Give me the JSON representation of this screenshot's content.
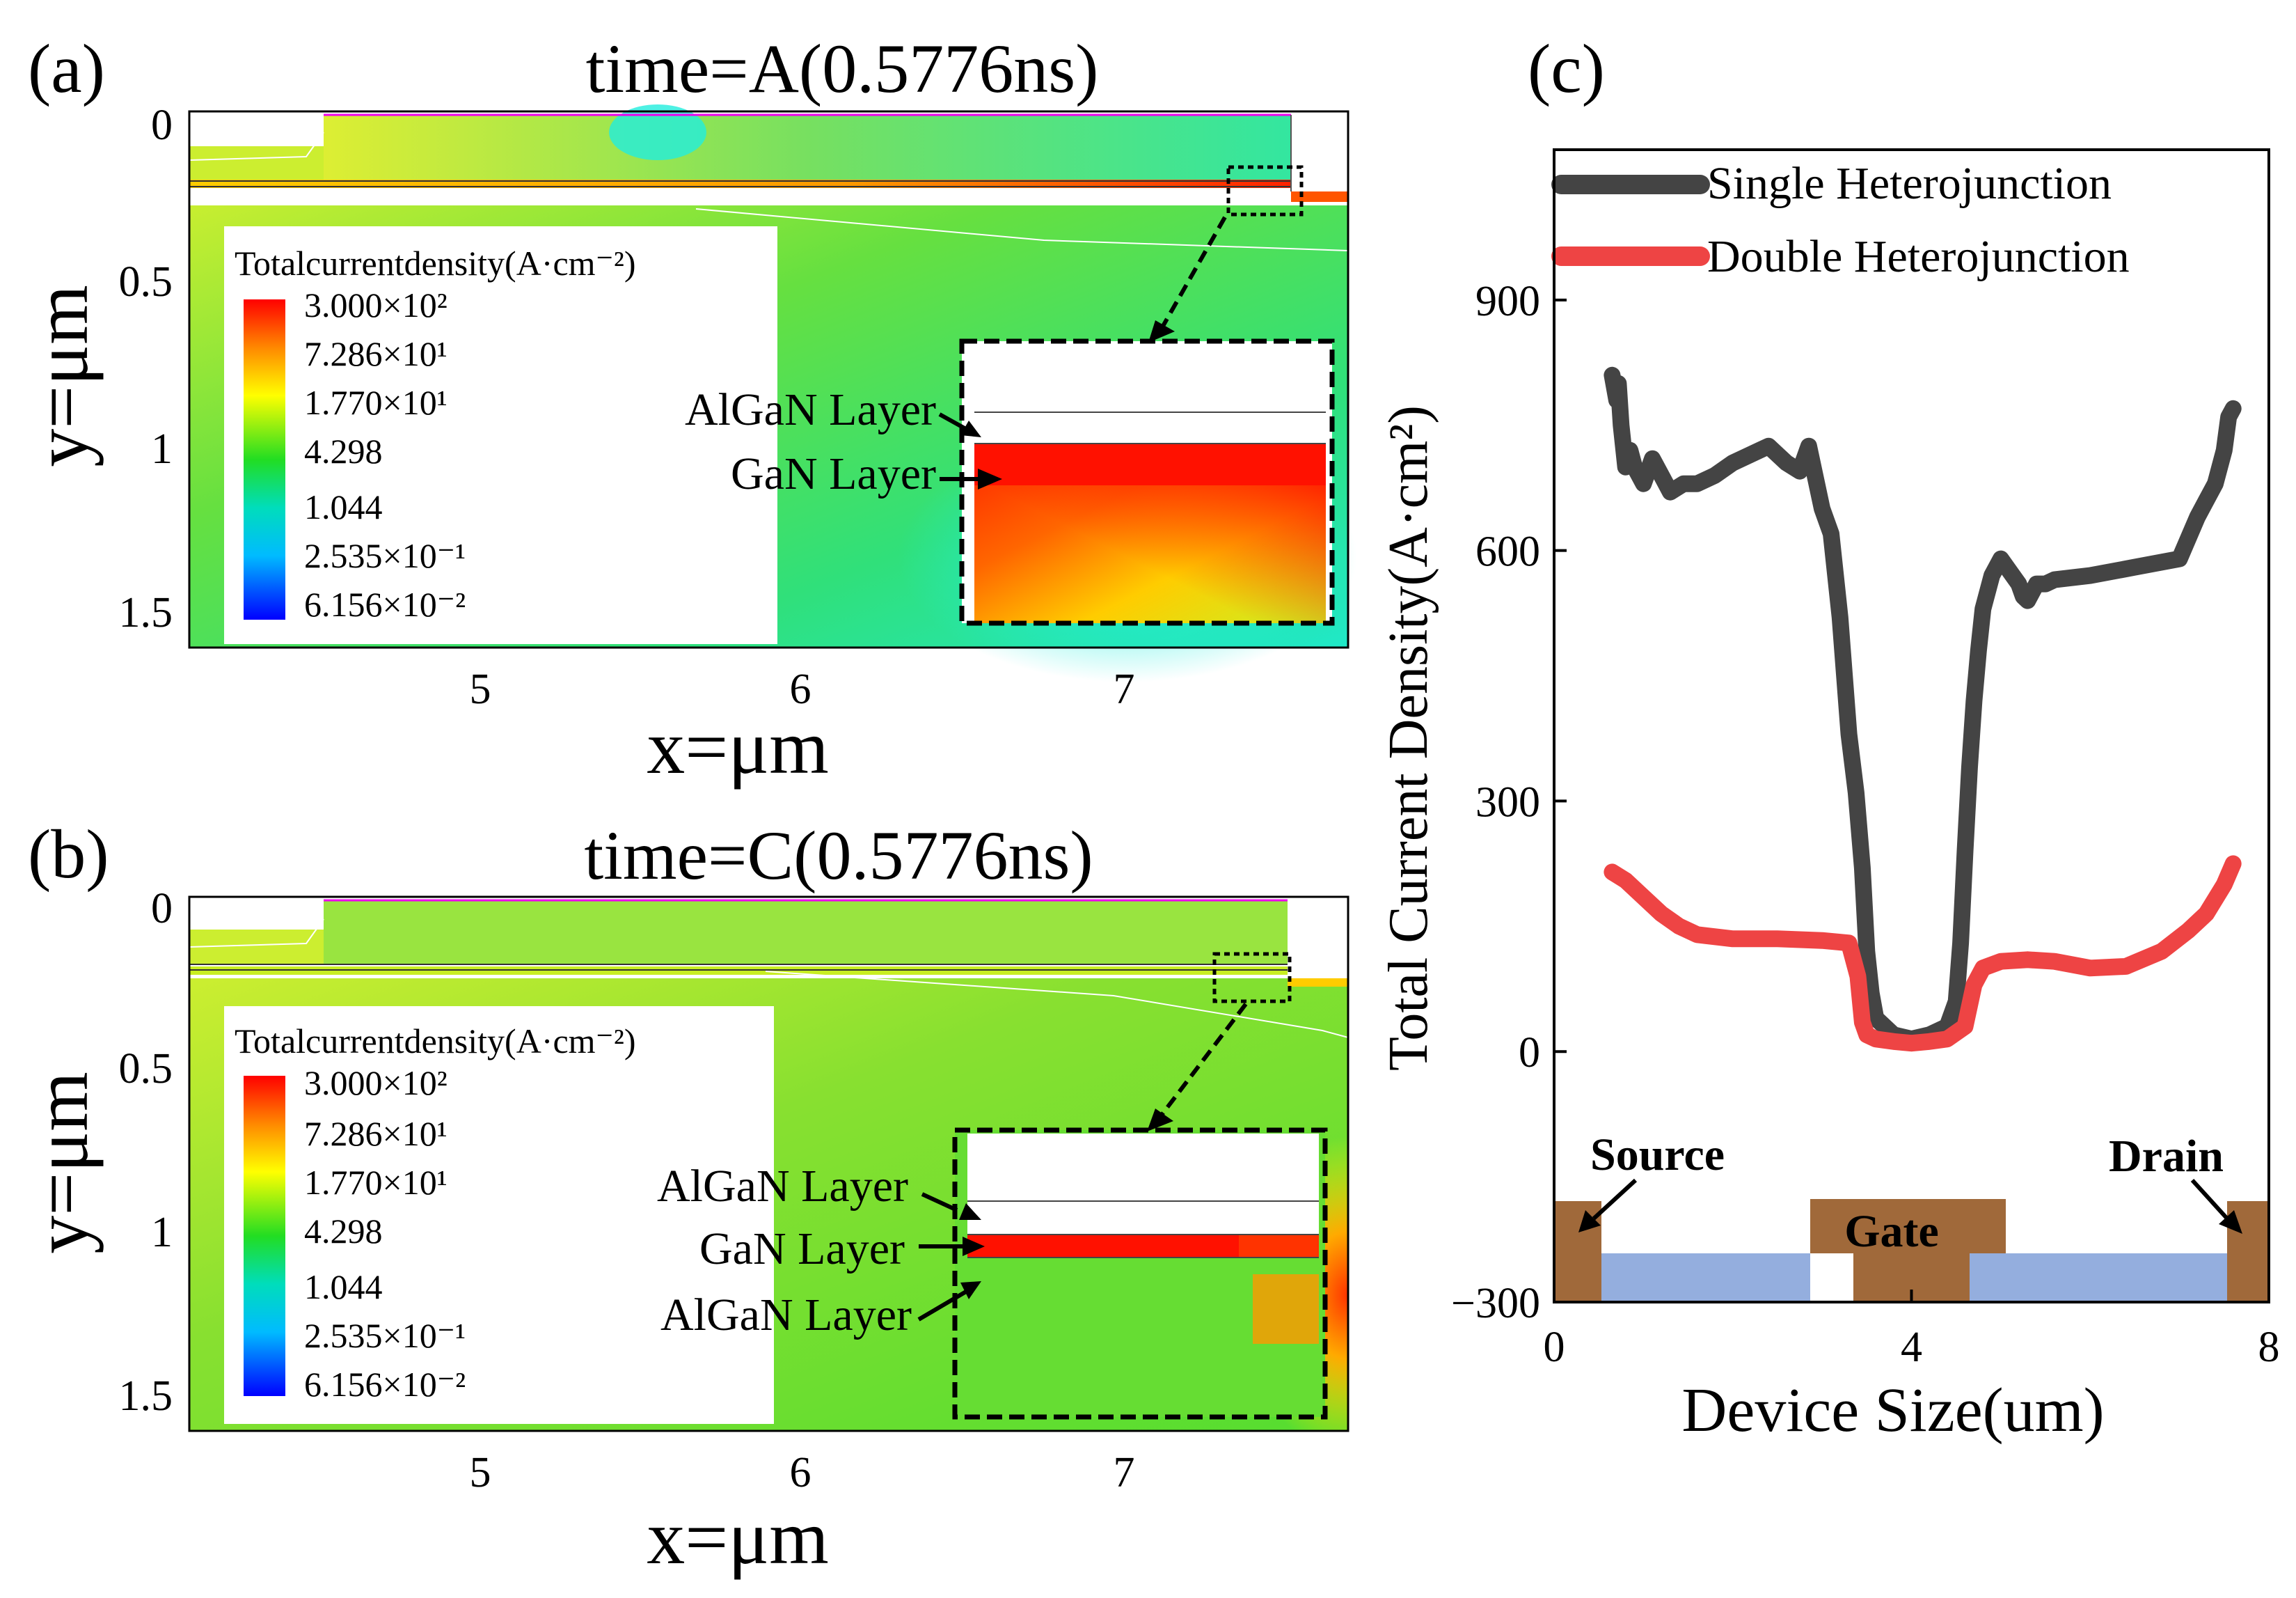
{
  "panel_a": {
    "letter": "(a)",
    "title": "time=A(0.5776ns)",
    "xlabel": "x=μm",
    "ylabel": "y=μm",
    "xticks": [
      "5",
      "6",
      "7"
    ],
    "yticks": [
      "0",
      "0.5",
      "1",
      "1.5"
    ],
    "legend_title": "Totalcurrentdensity(A·cm⁻²)",
    "legend_entries": [
      "3.000×10²",
      "7.286×10¹",
      "1.770×10¹",
      "4.298",
      "1.044",
      "2.535×10⁻¹",
      "6.156×10⁻²"
    ],
    "inset_labels": [
      "AlGaN Layer",
      "GaN Layer"
    ]
  },
  "panel_b": {
    "letter": "(b)",
    "title": "time=C(0.5776ns)",
    "xlabel": "x=μm",
    "ylabel": "y=μm",
    "xticks": [
      "5",
      "6",
      "7"
    ],
    "yticks": [
      "0",
      "0.5",
      "1",
      "1.5"
    ],
    "legend_title": "Totalcurrentdensity(A·cm⁻²)",
    "legend_entries": [
      "3.000×10²",
      "7.286×10¹",
      "1.770×10¹",
      "4.298",
      "1.044",
      "2.535×10⁻¹",
      "6.156×10⁻²"
    ],
    "inset_labels": [
      "AlGaN Layer",
      "GaN Layer",
      "AlGaN Layer"
    ]
  },
  "colorscale": [
    "#ff0000",
    "#ff8800",
    "#ffff00",
    "#22dd22",
    "#00e5e5",
    "#0088ff",
    "#0000ff"
  ],
  "chart_data": {
    "type": "line",
    "panel_letter": "(c)",
    "xlabel": "Device Size(um)",
    "ylabel": "Total Current Density(A·cm²)",
    "xlim": [
      0,
      8
    ],
    "ylim": [
      -300,
      1080
    ],
    "xticks": [
      0,
      4,
      8
    ],
    "yticks": [
      -300,
      0,
      300,
      600,
      900
    ],
    "xtick_labels": [
      "0",
      "4",
      "8"
    ],
    "ytick_labels": [
      "−300",
      "0",
      "300",
      "600",
      "900"
    ],
    "legend_position": "top",
    "series": [
      {
        "name": "Single Heterojunction",
        "color": "#444444",
        "x": [
          0.65,
          0.7,
          0.72,
          0.75,
          0.8,
          0.85,
          0.9,
          1.0,
          1.1,
          1.2,
          1.3,
          1.45,
          1.6,
          1.8,
          2.0,
          2.2,
          2.4,
          2.6,
          2.75,
          2.85,
          3.0,
          3.1,
          3.2,
          3.25,
          3.3,
          3.38,
          3.45,
          3.5,
          3.55,
          3.6,
          3.8,
          4.0,
          4.2,
          4.4,
          4.5,
          4.55,
          4.6,
          4.65,
          4.7,
          4.75,
          4.8,
          4.9,
          5.0,
          5.1,
          5.2,
          5.25,
          5.3,
          5.35,
          5.4,
          5.5,
          5.6,
          6.0,
          6.5,
          7.0,
          7.2,
          7.3,
          7.4,
          7.5,
          7.55,
          7.6
        ],
        "y": [
          810,
          780,
          800,
          750,
          700,
          720,
          700,
          680,
          710,
          690,
          670,
          680,
          680,
          690,
          705,
          715,
          725,
          705,
          695,
          725,
          650,
          620,
          520,
          450,
          380,
          310,
          220,
          120,
          70,
          40,
          20,
          15,
          20,
          30,
          60,
          130,
          240,
          340,
          420,
          480,
          530,
          570,
          590,
          575,
          560,
          545,
          540,
          550,
          560,
          560,
          565,
          570,
          580,
          590,
          640,
          660,
          680,
          720,
          760,
          770
        ]
      },
      {
        "name": "Double Heterojunction",
        "color": "#ee4444",
        "x": [
          0.65,
          0.8,
          1.0,
          1.2,
          1.4,
          1.6,
          2.0,
          2.5,
          3.0,
          3.3,
          3.4,
          3.45,
          3.5,
          3.6,
          3.8,
          4.0,
          4.2,
          4.4,
          4.6,
          4.7,
          4.8,
          5.0,
          5.3,
          5.6,
          6.0,
          6.4,
          6.8,
          7.1,
          7.3,
          7.5,
          7.6
        ],
        "y": [
          215,
          205,
          185,
          165,
          150,
          140,
          135,
          135,
          133,
          130,
          90,
          35,
          20,
          15,
          12,
          10,
          12,
          15,
          30,
          80,
          100,
          108,
          110,
          108,
          100,
          102,
          120,
          145,
          165,
          200,
          225
        ]
      }
    ],
    "device_labels": [
      "Source",
      "Gate",
      "Drain"
    ]
  }
}
